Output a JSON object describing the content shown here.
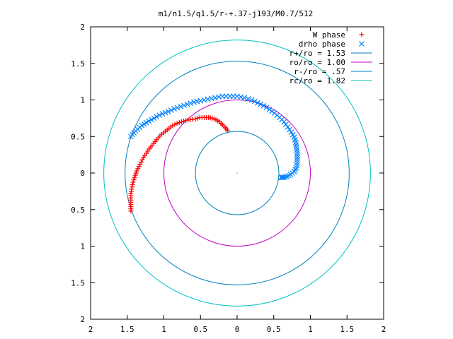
{
  "chart_data": {
    "type": "scatter",
    "title": "m1/n1.5/q1.5/r-+.37-j193/M0.7/512",
    "xlim": [
      -2,
      2
    ],
    "ylim": [
      -2,
      2
    ],
    "x_ticks": [
      -2,
      -1.5,
      -1,
      -0.5,
      0,
      0.5,
      1,
      1.5,
      2
    ],
    "y_ticks": [
      -2,
      -1.5,
      -1,
      -0.5,
      0,
      0.5,
      1,
      1.5,
      2
    ],
    "x_tick_labels": [
      "2",
      "1.5",
      "1",
      "0.5",
      "0",
      "0.5",
      "1",
      "1.5",
      "2"
    ],
    "y_tick_labels": [
      "2",
      "1.5",
      "1",
      "0.5",
      "0",
      "0.5",
      "1",
      "1.5",
      "2"
    ],
    "grid": false,
    "legend_position": "top-right",
    "series": [
      {
        "name": "W phase",
        "kind": "points",
        "marker": "plus",
        "color": "#ff0000",
        "points": [
          [
            -0.13,
            0.58
          ],
          [
            -0.16,
            0.62
          ],
          [
            -0.2,
            0.66
          ],
          [
            -0.24,
            0.7
          ],
          [
            -0.29,
            0.73
          ],
          [
            -0.34,
            0.75
          ],
          [
            -0.39,
            0.76
          ],
          [
            -0.45,
            0.76
          ],
          [
            -0.51,
            0.76
          ],
          [
            -0.57,
            0.74
          ],
          [
            -0.64,
            0.73
          ],
          [
            -0.7,
            0.72
          ],
          [
            -0.76,
            0.7
          ],
          [
            -0.82,
            0.68
          ],
          [
            -0.88,
            0.65
          ],
          [
            -0.93,
            0.61
          ],
          [
            -0.98,
            0.57
          ],
          [
            -1.03,
            0.53
          ],
          [
            -1.08,
            0.48
          ],
          [
            -1.12,
            0.43
          ],
          [
            -1.16,
            0.38
          ],
          [
            -1.2,
            0.33
          ],
          [
            -1.24,
            0.27
          ],
          [
            -1.28,
            0.21
          ],
          [
            -1.31,
            0.15
          ],
          [
            -1.34,
            0.09
          ],
          [
            -1.37,
            0.03
          ],
          [
            -1.39,
            -0.03
          ],
          [
            -1.41,
            -0.09
          ],
          [
            -1.43,
            -0.16
          ],
          [
            -1.44,
            -0.22
          ],
          [
            -1.45,
            -0.28
          ],
          [
            -1.45,
            -0.34
          ],
          [
            -1.45,
            -0.4
          ],
          [
            -1.45,
            -0.46
          ],
          [
            -1.45,
            -0.52
          ]
        ]
      },
      {
        "name": "drho phase",
        "kind": "points",
        "marker": "cross",
        "color": "#0080ff",
        "points": [
          [
            -1.45,
            0.5
          ],
          [
            -1.41,
            0.55
          ],
          [
            -1.36,
            0.6
          ],
          [
            -1.3,
            0.65
          ],
          [
            -1.24,
            0.69
          ],
          [
            -1.17,
            0.73
          ],
          [
            -1.1,
            0.77
          ],
          [
            -1.02,
            0.81
          ],
          [
            -0.94,
            0.84
          ],
          [
            -0.86,
            0.88
          ],
          [
            -0.77,
            0.91
          ],
          [
            -0.68,
            0.94
          ],
          [
            -0.59,
            0.97
          ],
          [
            -0.5,
            0.99
          ],
          [
            -0.4,
            1.01
          ],
          [
            -0.3,
            1.03
          ],
          [
            -0.2,
            1.05
          ],
          [
            -0.1,
            1.05
          ],
          [
            0.0,
            1.05
          ],
          [
            0.1,
            1.03
          ],
          [
            0.2,
            1.0
          ],
          [
            0.28,
            0.96
          ],
          [
            0.36,
            0.92
          ],
          [
            0.44,
            0.87
          ],
          [
            0.51,
            0.82
          ],
          [
            0.58,
            0.76
          ],
          [
            0.64,
            0.7
          ],
          [
            0.69,
            0.63
          ],
          [
            0.74,
            0.56
          ],
          [
            0.78,
            0.49
          ],
          [
            0.8,
            0.42
          ],
          [
            0.81,
            0.35
          ],
          [
            0.82,
            0.28
          ],
          [
            0.82,
            0.21
          ],
          [
            0.82,
            0.14
          ],
          [
            0.81,
            0.07
          ],
          [
            0.78,
            0.02
          ],
          [
            0.73,
            -0.02
          ],
          [
            0.68,
            -0.05
          ],
          [
            0.63,
            -0.06
          ],
          [
            0.6,
            -0.06
          ]
        ]
      },
      {
        "name": "r+/ro = 1.53",
        "kind": "circle",
        "radius": 1.53,
        "color": "#0080c0"
      },
      {
        "name": "ro/ro = 1.00",
        "kind": "circle",
        "radius": 1.0,
        "color": "#c000c0"
      },
      {
        "name": "r-/ro = .57",
        "kind": "circle",
        "radius": 0.57,
        "color": "#0080c0"
      },
      {
        "name": "rc/ro = 1.82",
        "kind": "circle",
        "radius": 1.82,
        "color": "#00c0c0"
      }
    ]
  }
}
